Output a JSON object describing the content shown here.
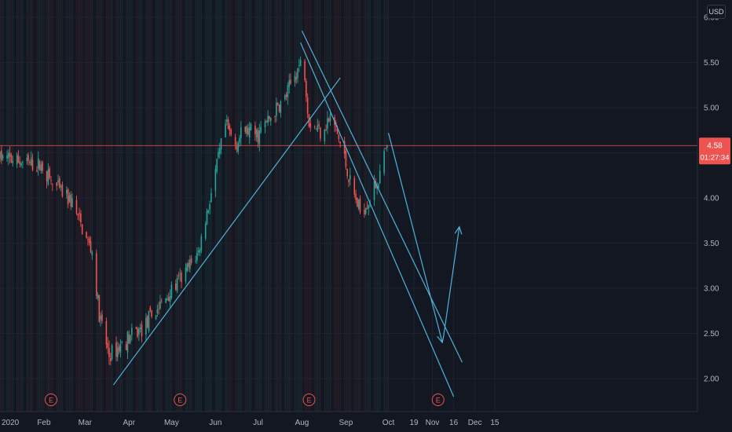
{
  "currency": "USD",
  "price_label": {
    "price": "4.58",
    "countdown": "01:27:34"
  },
  "earnings_marker_label": "E",
  "colors": {
    "up": "#26a69a",
    "down": "#ef5350",
    "trendline": "#4fb3d9",
    "price_line": "#ef5350",
    "background": "#131722",
    "future_bg": "#131722"
  },
  "chart_data": {
    "type": "candlestick",
    "title": "",
    "xlabel": "",
    "ylabel": "",
    "ylim": [
      1.6,
      6.1
    ],
    "y_ticks": [
      "2.00",
      "2.50",
      "3.00",
      "3.50",
      "4.00",
      "4.50",
      "5.00",
      "5.50",
      "6.00"
    ],
    "x_ticks": [
      {
        "label": "2020",
        "date": "2020-01-01"
      },
      {
        "label": "Feb",
        "date": "2020-02-01"
      },
      {
        "label": "Mar",
        "date": "2020-03-01"
      },
      {
        "label": "Apr",
        "date": "2020-04-01"
      },
      {
        "label": "May",
        "date": "2020-05-01"
      },
      {
        "label": "Jun",
        "date": "2020-06-01"
      },
      {
        "label": "Jul",
        "date": "2020-07-01"
      },
      {
        "label": "Aug",
        "date": "2020-08-01"
      },
      {
        "label": "Sep",
        "date": "2020-09-01"
      },
      {
        "label": "Oct",
        "date": "2020-10-01"
      },
      {
        "label": "19",
        "date": "2020-10-19"
      },
      {
        "label": "Nov",
        "date": "2020-11-01"
      },
      {
        "label": "16",
        "date": "2020-11-16"
      },
      {
        "label": "Dec",
        "date": "2020-12-01"
      },
      {
        "label": "15",
        "date": "2020-12-15"
      }
    ],
    "close_path": [
      [
        "2020-01-01",
        4.45
      ],
      [
        "2020-01-10",
        4.42
      ],
      [
        "2020-01-20",
        4.38
      ],
      [
        "2020-01-31",
        4.35
      ],
      [
        "2020-02-07",
        4.15
      ],
      [
        "2020-02-14",
        4.05
      ],
      [
        "2020-02-21",
        3.95
      ],
      [
        "2020-02-28",
        3.65
      ],
      [
        "2020-03-06",
        3.4
      ],
      [
        "2020-03-11",
        2.7
      ],
      [
        "2020-03-18",
        2.25
      ],
      [
        "2020-03-25",
        2.35
      ],
      [
        "2020-04-01",
        2.45
      ],
      [
        "2020-04-10",
        2.55
      ],
      [
        "2020-04-20",
        2.75
      ],
      [
        "2020-04-30",
        2.95
      ],
      [
        "2020-05-10",
        3.15
      ],
      [
        "2020-05-20",
        3.4
      ],
      [
        "2020-05-31",
        4.2
      ],
      [
        "2020-06-08",
        4.8
      ],
      [
        "2020-06-15",
        4.6
      ],
      [
        "2020-06-22",
        4.75
      ],
      [
        "2020-07-01",
        4.7
      ],
      [
        "2020-07-10",
        4.9
      ],
      [
        "2020-07-20",
        5.1
      ],
      [
        "2020-07-28",
        5.4
      ],
      [
        "2020-08-02",
        5.55
      ],
      [
        "2020-08-06",
        4.85
      ],
      [
        "2020-08-14",
        4.75
      ],
      [
        "2020-08-22",
        4.9
      ],
      [
        "2020-08-30",
        4.5
      ],
      [
        "2020-09-05",
        4.1
      ],
      [
        "2020-09-11",
        3.85
      ],
      [
        "2020-09-18",
        4.0
      ],
      [
        "2020-09-25",
        4.25
      ],
      [
        "2020-09-30",
        4.58
      ]
    ],
    "current_price": 4.58,
    "earnings_dates": [
      "2020-02-06",
      "2020-05-07",
      "2020-08-06",
      "2020-11-05"
    ],
    "trendlines": [
      {
        "from": [
          "2020-03-21",
          1.93
        ],
        "to": [
          "2020-08-28",
          5.33
        ]
      },
      {
        "from": [
          "2020-07-31",
          5.72
        ],
        "to": [
          "2020-11-16",
          1.8
        ]
      },
      {
        "from": [
          "2020-08-01",
          5.85
        ],
        "to": [
          "2020-11-22",
          2.18
        ]
      },
      {
        "from": [
          "2020-10-01",
          4.72
        ],
        "to": [
          "2020-11-08",
          2.4
        ],
        "arrow": true
      },
      {
        "from": [
          "2020-11-09",
          2.48
        ],
        "to": [
          "2020-11-20",
          3.68
        ],
        "arrow": true
      }
    ]
  }
}
